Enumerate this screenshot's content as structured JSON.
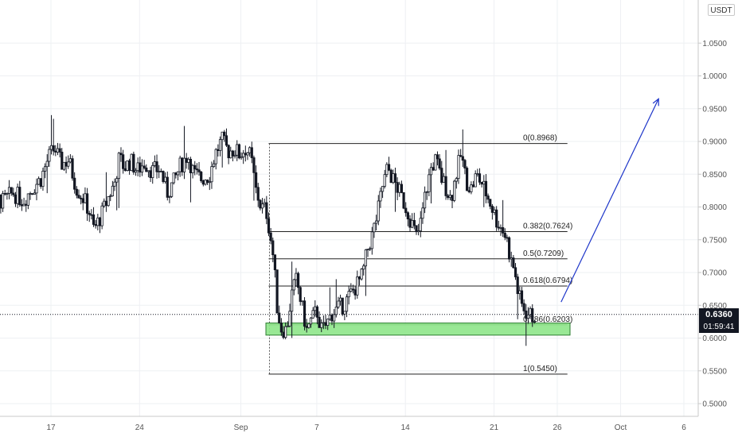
{
  "price_scale": {
    "currency": "USDT",
    "current_price": "0.6360",
    "countdown": "01:59:41"
  },
  "chart_data": {
    "type": "candlestick",
    "y_ticks": [
      "1.0500",
      "1.0000",
      "0.9500",
      "0.9000",
      "0.8500",
      "0.8000",
      "0.7500",
      "0.7000",
      "0.6500",
      "0.6000",
      "0.5500",
      "0.5000"
    ],
    "y_tick_values": [
      1.05,
      1.0,
      0.95,
      0.9,
      0.85,
      0.8,
      0.75,
      0.7,
      0.65,
      0.6,
      0.55,
      0.5
    ],
    "ylim": [
      0.47,
      1.1
    ],
    "x_ticks": [
      "17",
      "24",
      "Sep",
      "7",
      "14",
      "21",
      "26",
      "Oct",
      "6"
    ],
    "x_tick_days": [
      17,
      24,
      32,
      38,
      45,
      52,
      57,
      62,
      67
    ],
    "xlim_days": [
      11.2,
      69
    ],
    "close_path": [
      [
        11.2,
        0.818
      ],
      [
        11.8,
        0.795
      ],
      [
        12.5,
        0.815
      ],
      [
        13.2,
        0.808
      ],
      [
        14.0,
        0.822
      ],
      [
        14.8,
        0.81
      ],
      [
        15.5,
        0.828
      ],
      [
        16.2,
        0.843
      ],
      [
        16.8,
        0.875
      ],
      [
        17.3,
        0.89
      ],
      [
        17.8,
        0.865
      ],
      [
        18.4,
        0.872
      ],
      [
        19.0,
        0.83
      ],
      [
        19.6,
        0.812
      ],
      [
        20.0,
        0.795
      ],
      [
        20.4,
        0.765
      ],
      [
        21.0,
        0.788
      ],
      [
        21.6,
        0.818
      ],
      [
        22.0,
        0.835
      ],
      [
        22.4,
        0.875
      ],
      [
        22.8,
        0.86
      ],
      [
        23.3,
        0.87
      ],
      [
        23.8,
        0.855
      ],
      [
        24.4,
        0.868
      ],
      [
        25.0,
        0.855
      ],
      [
        25.6,
        0.858
      ],
      [
        26.2,
        0.822
      ],
      [
        26.7,
        0.838
      ],
      [
        27.2,
        0.862
      ],
      [
        27.8,
        0.88
      ],
      [
        28.3,
        0.85
      ],
      [
        28.9,
        0.843
      ],
      [
        29.5,
        0.848
      ],
      [
        30.0,
        0.882
      ],
      [
        30.5,
        0.902
      ],
      [
        31.0,
        0.885
      ],
      [
        31.5,
        0.888
      ],
      [
        31.9,
        0.88
      ],
      [
        32.4,
        0.89
      ],
      [
        32.8,
        0.875
      ],
      [
        33.2,
        0.825
      ],
      [
        33.6,
        0.8
      ],
      [
        34.0,
        0.795
      ],
      [
        34.3,
        0.76
      ],
      [
        34.6,
        0.718
      ],
      [
        34.9,
        0.64
      ],
      [
        35.2,
        0.615
      ],
      [
        35.6,
        0.612
      ],
      [
        36.0,
        0.665
      ],
      [
        36.4,
        0.69
      ],
      [
        36.8,
        0.65
      ],
      [
        37.2,
        0.612
      ],
      [
        37.6,
        0.628
      ],
      [
        38.0,
        0.642
      ],
      [
        38.4,
        0.61
      ],
      [
        38.8,
        0.622
      ],
      [
        39.2,
        0.638
      ],
      [
        39.7,
        0.645
      ],
      [
        40.2,
        0.652
      ],
      [
        40.7,
        0.668
      ],
      [
        41.2,
        0.682
      ],
      [
        41.6,
        0.695
      ],
      [
        42.0,
        0.735
      ],
      [
        42.4,
        0.758
      ],
      [
        42.8,
        0.79
      ],
      [
        43.2,
        0.832
      ],
      [
        43.6,
        0.86
      ],
      [
        44.0,
        0.842
      ],
      [
        44.4,
        0.828
      ],
      [
        44.8,
        0.81
      ],
      [
        45.2,
        0.792
      ],
      [
        45.6,
        0.77
      ],
      [
        45.9,
        0.752
      ],
      [
        46.2,
        0.775
      ],
      [
        46.6,
        0.822
      ],
      [
        47.0,
        0.858
      ],
      [
        47.4,
        0.872
      ],
      [
        47.8,
        0.845
      ],
      [
        48.2,
        0.83
      ],
      [
        48.6,
        0.812
      ],
      [
        49.0,
        0.85
      ],
      [
        49.4,
        0.88
      ],
      [
        49.8,
        0.84
      ],
      [
        50.2,
        0.828
      ],
      [
        50.6,
        0.848
      ],
      [
        51.0,
        0.838
      ],
      [
        51.4,
        0.82
      ],
      [
        51.8,
        0.802
      ],
      [
        52.2,
        0.78
      ],
      [
        52.6,
        0.768
      ],
      [
        53.0,
        0.752
      ],
      [
        53.3,
        0.72
      ],
      [
        53.6,
        0.705
      ],
      [
        53.9,
        0.668
      ],
      [
        54.2,
        0.65
      ],
      [
        54.6,
        0.638
      ],
      [
        55.0,
        0.633
      ],
      [
        55.3,
        0.636
      ]
    ],
    "fibonacci": [
      {
        "label": "0(0.8968)",
        "value": 0.8968
      },
      {
        "label": "0.382(0.7624)",
        "value": 0.7624
      },
      {
        "label": "0.5(0.7209)",
        "value": 0.7209
      },
      {
        "label": "0.618(0.6794)",
        "value": 0.6794
      },
      {
        "label": "0.786(0.6203)",
        "value": 0.6203
      },
      {
        "label": "1(0.5450)",
        "value": 0.545
      }
    ],
    "support_zone": {
      "from": 0.6045,
      "to": 0.623
    },
    "projection_arrow": {
      "from": [
        57.3,
        0.655
      ],
      "to": [
        65.0,
        0.965
      ]
    },
    "current_price_value": 0.636,
    "colors": {
      "up": "#26a69a",
      "down": "#131722",
      "candle": "#131722",
      "support_fill": "#8ee68a",
      "arrow": "#1d35c9",
      "grid": "#eef0f3"
    }
  }
}
